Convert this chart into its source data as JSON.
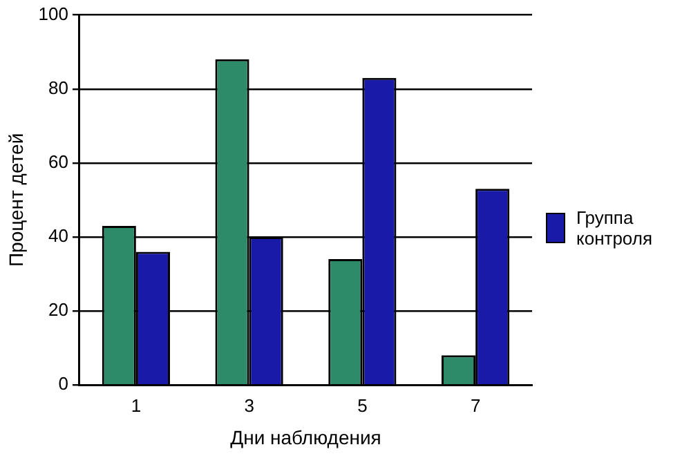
{
  "chart_data": {
    "type": "bar",
    "xlabel": "Дни наблюдения",
    "ylabel": "Процент детей",
    "categories": [
      "1",
      "3",
      "5",
      "7"
    ],
    "series": [
      {
        "color": "#2e8b6a",
        "values": [
          43,
          88,
          34,
          8
        ]
      },
      {
        "name": "Группа контроля",
        "color": "#1a1aa8",
        "values": [
          36,
          40,
          83,
          53
        ]
      }
    ],
    "ylim": [
      0,
      100
    ],
    "yticks": [
      0,
      20,
      40,
      60,
      80,
      100
    ],
    "grid": "y",
    "legend": "right"
  }
}
